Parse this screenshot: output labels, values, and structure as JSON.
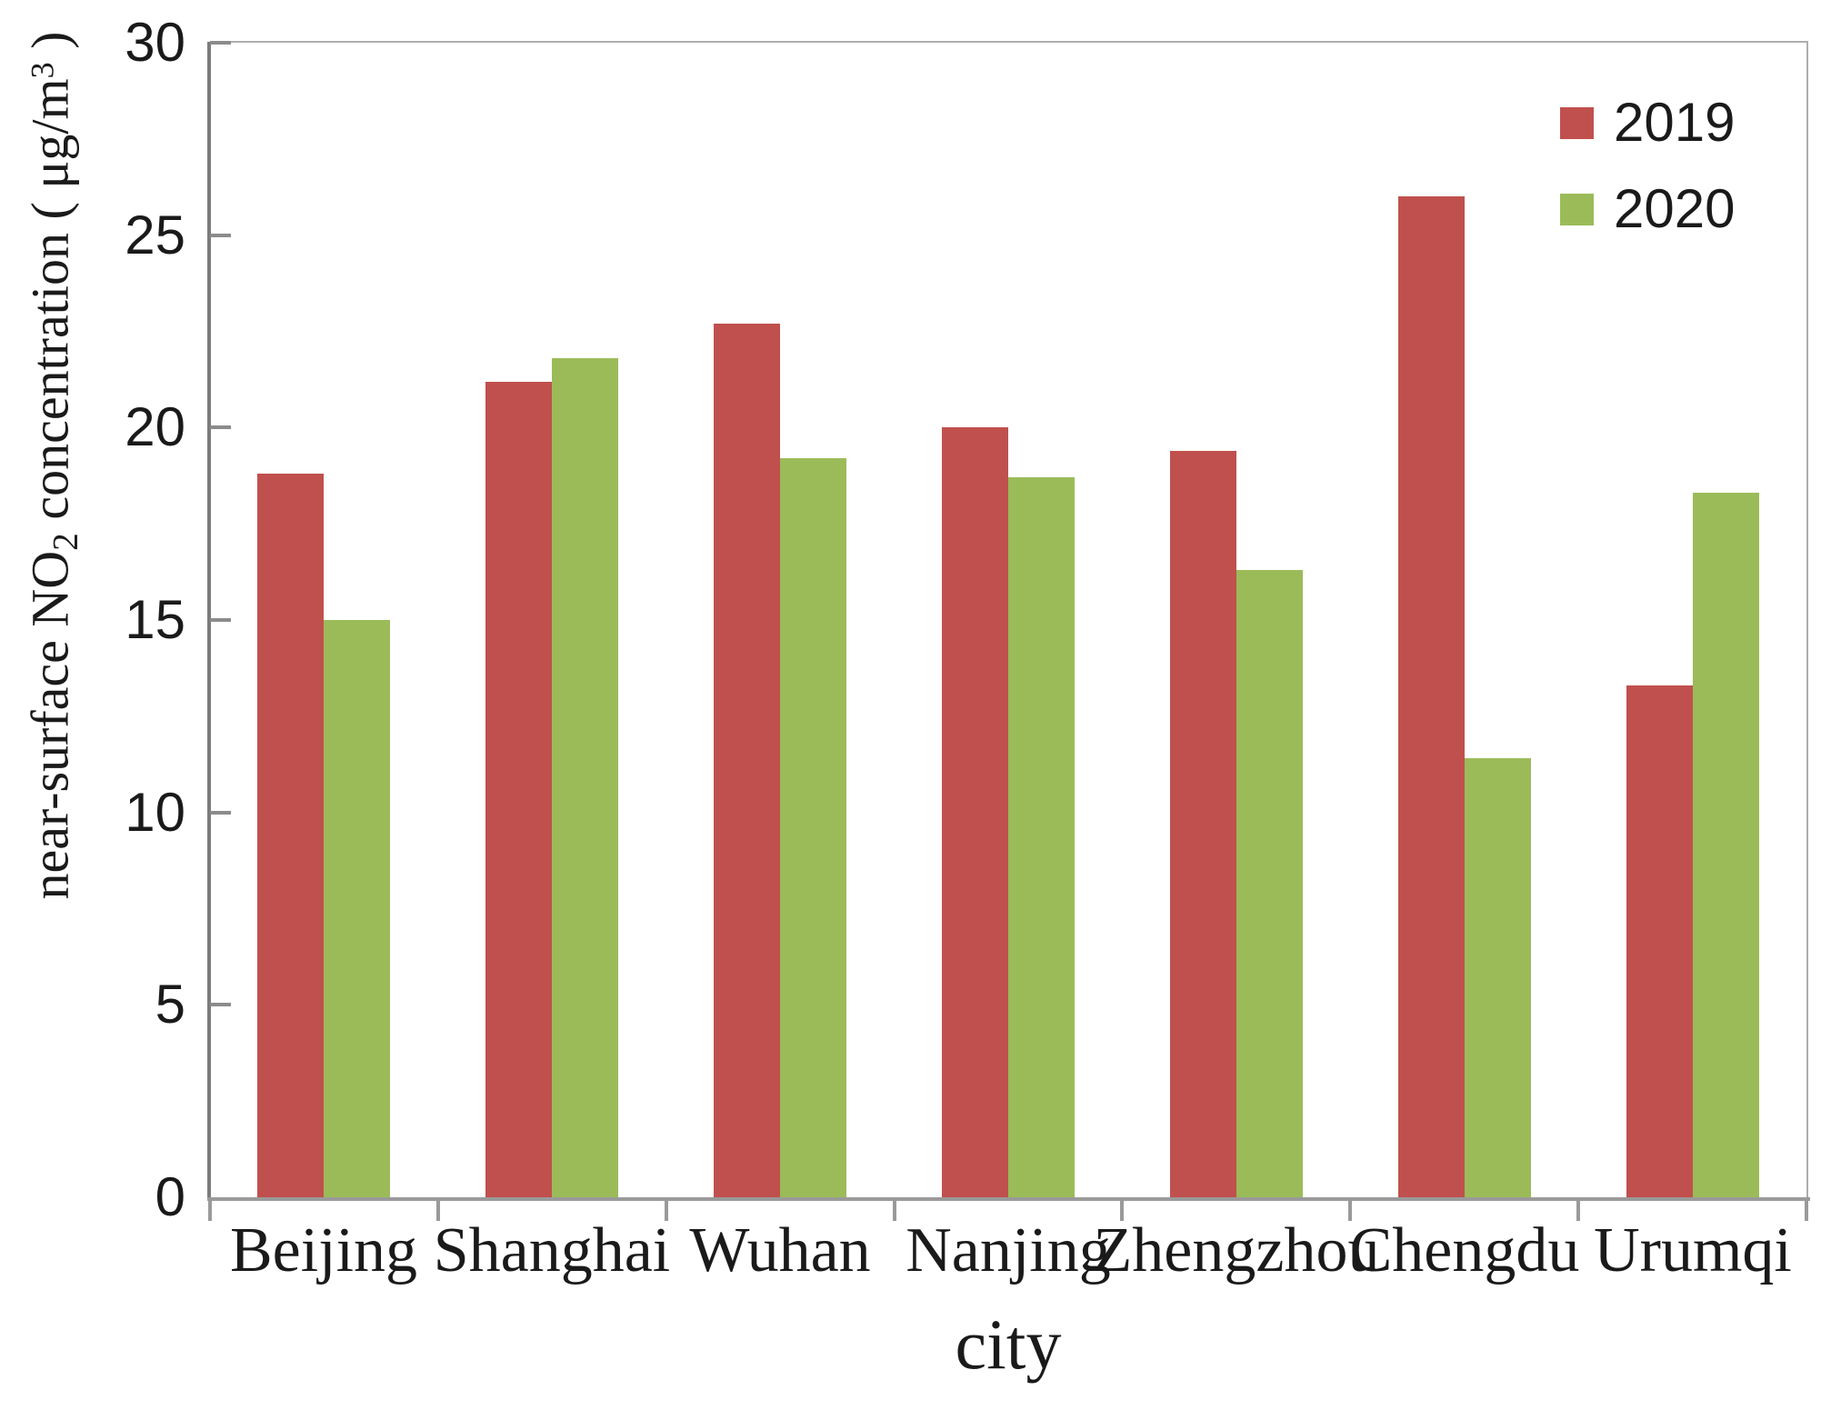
{
  "figure": {
    "x_axis": {
      "label": "city",
      "categories": [
        "Beijing",
        "Shanghai",
        "Wuhan",
        "Nanjing",
        "Zhengzhou",
        "Chengdu",
        "Urumqi"
      ]
    },
    "y_axis": {
      "label_pre": "near-surface NO",
      "label_sub": "2",
      "label_mid": " concentration ( μg/m",
      "label_sup": "3",
      "label_post": " )",
      "tick_labels": [
        "0",
        "5",
        "10",
        "15",
        "20",
        "25",
        "30"
      ]
    }
  },
  "legend": {
    "items": [
      {
        "label": "2019",
        "color": "#C0504D"
      },
      {
        "label": "2020",
        "color": "#9BBB59"
      }
    ]
  },
  "chart_data": {
    "type": "bar",
    "categories": [
      "Beijing",
      "Shanghai",
      "Wuhan",
      "Nanjing",
      "Zhengzhou",
      "Chengdu",
      "Urumqi"
    ],
    "series": [
      {
        "name": "2019",
        "color": "#C0504D",
        "values": [
          18.8,
          21.2,
          22.7,
          20.0,
          19.4,
          26.0,
          13.3
        ]
      },
      {
        "name": "2020",
        "color": "#9BBB59",
        "values": [
          15.0,
          21.8,
          19.2,
          18.7,
          16.3,
          11.4,
          18.3
        ]
      }
    ],
    "title": "",
    "xlabel": "city",
    "ylabel": "near-surface NO₂ concentration ( μg/m³ )",
    "ylim": [
      0,
      30
    ],
    "yticks": [
      0,
      5,
      10,
      15,
      20,
      25,
      30
    ],
    "grid": false,
    "legend_position": "top-right-inside"
  }
}
